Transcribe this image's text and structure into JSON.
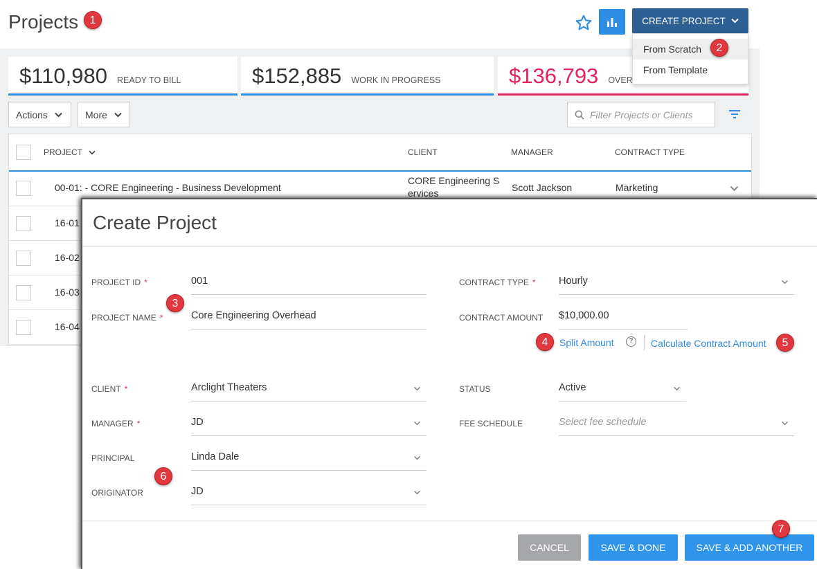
{
  "header": {
    "title": "Projects",
    "create_label": "CREATE PROJECT",
    "create_menu": [
      "From Scratch",
      "From Template"
    ]
  },
  "badges": [
    "1",
    "2",
    "3",
    "4",
    "5",
    "6",
    "7"
  ],
  "kpis": [
    {
      "value": "$110,980",
      "label": "READY TO BILL"
    },
    {
      "value": "$152,885",
      "label": "WORK IN PROGRESS"
    },
    {
      "value": "$136,793",
      "label": "OVERDUE"
    }
  ],
  "toolbar": {
    "actions_label": "Actions",
    "more_label": "More",
    "filter_placeholder": "Filter Projects or Clients"
  },
  "table": {
    "columns": [
      "PROJECT",
      "CLIENT",
      "MANAGER",
      "CONTRACT TYPE"
    ],
    "rows": [
      {
        "project": "00-01: - CORE Engineering - Business Development",
        "client": "CORE Engineering Services",
        "manager": "Scott Jackson",
        "contract_type": "Marketing"
      },
      {
        "project": "16-01"
      },
      {
        "project": "16-02"
      },
      {
        "project": "16-03"
      },
      {
        "project": "16-04"
      }
    ]
  },
  "modal": {
    "title": "Create Project",
    "fields": {
      "project_id": {
        "label": "PROJECT ID",
        "value": "001"
      },
      "project_name": {
        "label": "PROJECT NAME",
        "value": "Core Engineering Overhead"
      },
      "contract_type": {
        "label": "CONTRACT TYPE",
        "value": "Hourly"
      },
      "contract_amount": {
        "label": "CONTRACT AMOUNT",
        "value": "$10,000.00"
      },
      "client": {
        "label": "CLIENT",
        "value": "Arclight Theaters"
      },
      "status": {
        "label": "STATUS",
        "value": "Active"
      },
      "manager": {
        "label": "MANAGER",
        "value": "JD"
      },
      "fee_schedule": {
        "label": "FEE SCHEDULE",
        "placeholder": "Select fee schedule"
      },
      "principal": {
        "label": "PRINCIPAL",
        "value": "Linda Dale"
      },
      "originator": {
        "label": "ORIGINATOR",
        "value": "JD"
      }
    },
    "split_amount_label": "Split Amount",
    "help_glyph": "?",
    "calc_amount_label": "Calculate Contract Amount",
    "buttons": {
      "cancel": "CANCEL",
      "save_done": "SAVE & DONE",
      "save_add": "SAVE & ADD ANOTHER"
    }
  },
  "colors": {
    "accent": "#2e8ee3",
    "header_button": "#2c5f93",
    "overdue": "#e0245e",
    "badge": "#e0383e"
  }
}
